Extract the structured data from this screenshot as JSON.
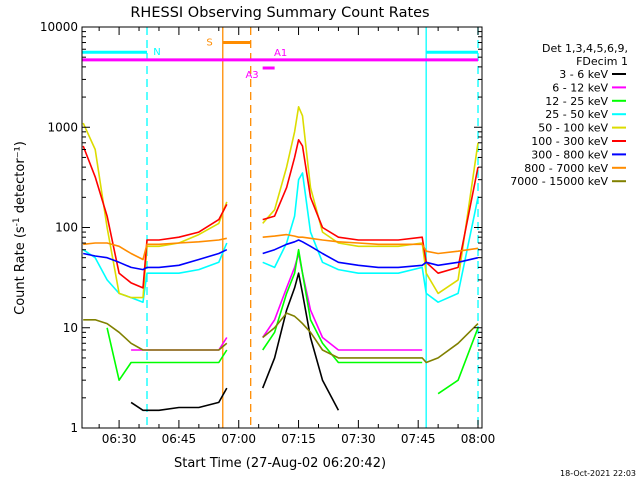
{
  "chart_data": {
    "type": "line",
    "title": "RHESSI Observing Summary Count Rates",
    "xlabel": "Start Time (27-Aug-02 06:20:42)",
    "ylabel": "Count Rate (s^-1 detector^-1)",
    "y_scale": "log",
    "ylim": [
      1,
      10000
    ],
    "xlim": [
      "06:20:42",
      "08:01:00"
    ],
    "x_ticks": [
      "06:30",
      "06:45",
      "07:00",
      "07:15",
      "07:30",
      "07:45",
      "08:00"
    ],
    "y_ticks": [
      "1",
      "10",
      "100",
      "1000",
      "10000"
    ],
    "legend_header": [
      "Det 1,3,4,5,6,9,",
      "FDecim 1"
    ],
    "legend_position": "right",
    "date_stamp": "18-Oct-2021 22:03",
    "flags": [
      {
        "label": "N",
        "color": "#00ffff",
        "level": 5600,
        "spans": [
          [
            "06:20:42",
            "06:37:00"
          ],
          [
            "07:47:00",
            "08:00:00"
          ]
        ]
      },
      {
        "label": "S",
        "color": "#ff8c00",
        "level": 7000,
        "spans": [
          [
            "06:56:00",
            "07:03:00"
          ]
        ]
      },
      {
        "label": "A1",
        "color": "#ff00ff",
        "level": 4700,
        "spans": [
          [
            "06:20:42",
            "08:00:00"
          ]
        ]
      },
      {
        "label": "A3",
        "color": "#ff00ff",
        "level": 3900,
        "spans": [
          [
            "07:06:00",
            "07:09:00"
          ]
        ]
      }
    ],
    "vlines": [
      {
        "time": "06:37:00",
        "color": "#00ffff",
        "style": "dashed"
      },
      {
        "time": "06:56:00",
        "color": "#ff8c00",
        "style": "solid"
      },
      {
        "time": "07:03:00",
        "color": "#ff8c00",
        "style": "dashed"
      },
      {
        "time": "07:47:00",
        "color": "#00ffff",
        "style": "solid"
      },
      {
        "time": "08:00:00",
        "color": "#00ffff",
        "style": "dashed"
      }
    ],
    "x": [
      "06:21",
      "06:24",
      "06:27",
      "06:30",
      "06:33",
      "06:36",
      "06:37",
      "06:40",
      "06:45",
      "06:50",
      "06:55",
      "06:57",
      "06:58",
      "07:03",
      "07:06",
      "07:09",
      "07:12",
      "07:14",
      "07:15",
      "07:16",
      "07:18",
      "07:21",
      "07:25",
      "07:30",
      "07:35",
      "07:40",
      "07:46",
      "07:47",
      "07:50",
      "07:55",
      "08:00"
    ],
    "series": [
      {
        "name": "3 - 6 keV",
        "color": "#000000",
        "values": [
          null,
          null,
          null,
          null,
          1.8,
          1.5,
          1.5,
          1.5,
          1.6,
          1.6,
          1.8,
          2.5,
          null,
          null,
          2.5,
          5,
          15,
          25,
          35,
          22,
          8,
          3,
          1.5,
          null,
          null,
          null,
          null,
          null,
          null,
          null,
          null
        ]
      },
      {
        "name": "6 - 12 keV",
        "color": "#ff00ff",
        "values": [
          null,
          null,
          null,
          null,
          6,
          6,
          6,
          6,
          6,
          6,
          6,
          8,
          null,
          null,
          8,
          12,
          25,
          40,
          55,
          35,
          15,
          8,
          6,
          6,
          6,
          6,
          6,
          null,
          null,
          null,
          null
        ]
      },
      {
        "name": "12 - 25 keV",
        "color": "#00ff00",
        "values": [
          null,
          null,
          10,
          3,
          4.5,
          4.5,
          4.5,
          4.5,
          4.5,
          4.5,
          4.5,
          6,
          null,
          null,
          6,
          9,
          22,
          35,
          60,
          35,
          12,
          7,
          4.5,
          4.5,
          4.5,
          4.5,
          4.5,
          null,
          2.2,
          3,
          10
        ]
      },
      {
        "name": "25 - 50 keV",
        "color": "#00ffff",
        "values": [
          60,
          50,
          30,
          22,
          20,
          18,
          35,
          35,
          35,
          38,
          45,
          70,
          null,
          null,
          45,
          40,
          70,
          130,
          300,
          350,
          90,
          45,
          38,
          35,
          35,
          35,
          40,
          22,
          18,
          22,
          200
        ]
      },
      {
        "name": "50 - 100 keV",
        "color": "#dcdc00",
        "values": [
          1100,
          600,
          100,
          22,
          20,
          20,
          65,
          65,
          70,
          85,
          110,
          180,
          null,
          null,
          110,
          150,
          400,
          900,
          1600,
          1300,
          250,
          90,
          70,
          65,
          65,
          65,
          70,
          35,
          22,
          30,
          700
        ]
      },
      {
        "name": "100 - 300 keV",
        "color": "#ff0000",
        "values": [
          650,
          320,
          130,
          35,
          28,
          25,
          75,
          75,
          80,
          90,
          120,
          170,
          null,
          null,
          120,
          130,
          250,
          500,
          750,
          650,
          200,
          100,
          80,
          75,
          75,
          75,
          80,
          45,
          35,
          40,
          400
        ]
      },
      {
        "name": "300 - 800 keV",
        "color": "#0000ff",
        "values": [
          55,
          52,
          50,
          45,
          40,
          38,
          40,
          40,
          42,
          48,
          55,
          60,
          null,
          null,
          55,
          60,
          68,
          72,
          75,
          72,
          65,
          55,
          45,
          42,
          40,
          40,
          42,
          45,
          42,
          45,
          50
        ]
      },
      {
        "name": "800 - 7000 keV",
        "color": "#ff8c00",
        "values": [
          68,
          70,
          70,
          65,
          55,
          48,
          68,
          68,
          70,
          72,
          75,
          78,
          null,
          null,
          80,
          82,
          85,
          82,
          80,
          80,
          78,
          75,
          72,
          70,
          68,
          68,
          68,
          58,
          55,
          58,
          62
        ]
      },
      {
        "name": "7000 - 15000 keV",
        "color": "#808000",
        "values": [
          12,
          12,
          11,
          9,
          7,
          6,
          6,
          6,
          6,
          6,
          6,
          7,
          null,
          null,
          8,
          10,
          14,
          13,
          12,
          11,
          9,
          6,
          5,
          5,
          5,
          5,
          5,
          4.5,
          5,
          7,
          11
        ]
      }
    ]
  }
}
